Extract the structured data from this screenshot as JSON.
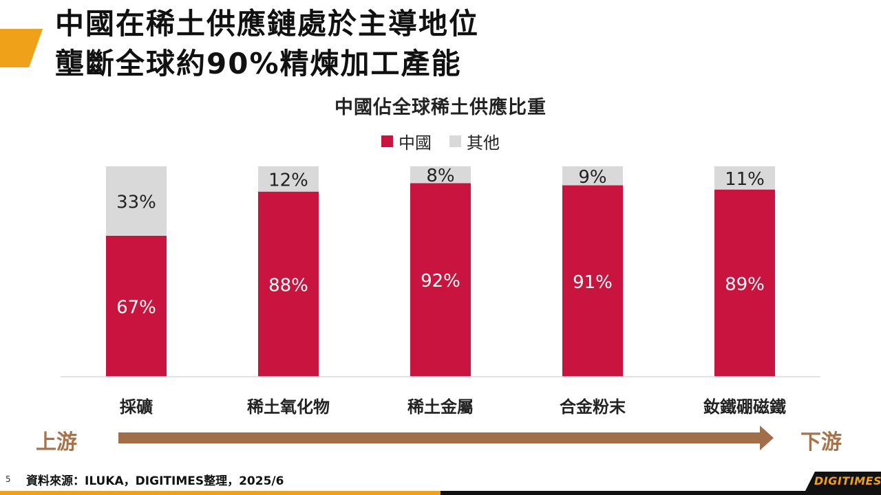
{
  "slide": {
    "title_line1": "中國在稀土供應鏈處於主導地位",
    "title_line2": "壟斷全球約90%精煉加工產能",
    "page_number": "5",
    "source": "資料來源：ILUKA，DIGITIMES整理，2025/6",
    "logo": "DIGITIMES",
    "upstream_label": "上游",
    "downstream_label": "下游"
  },
  "colors": {
    "china": "#c8143e",
    "other": "#d9d9d9",
    "accent": "#f0a11a",
    "arrow": "#a26d49"
  },
  "chart_data": {
    "type": "bar",
    "stacked": true,
    "title": "中國佔全球稀土供應比重",
    "legend": [
      "中國",
      "其他"
    ],
    "legend_position": "top",
    "categories": [
      "採礦",
      "稀土氧化物",
      "稀土金屬",
      "合金粉末",
      "釹鐵硼磁鐵"
    ],
    "series": [
      {
        "name": "中國",
        "values": [
          67,
          88,
          92,
          91,
          89
        ],
        "labels": [
          "67%",
          "88%",
          "92%",
          "91%",
          "89%"
        ]
      },
      {
        "name": "其他",
        "values": [
          33,
          12,
          8,
          9,
          11
        ],
        "labels": [
          "33%",
          "12%",
          "8%",
          "9%",
          "11%"
        ]
      }
    ],
    "ylim": [
      0,
      100
    ],
    "grid": false
  }
}
